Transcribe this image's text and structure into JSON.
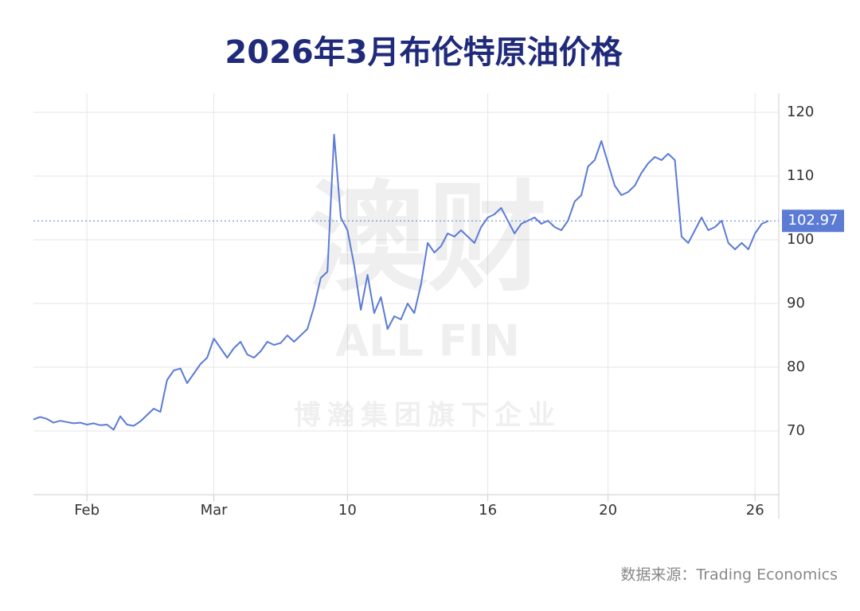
{
  "chart_data": {
    "type": "line",
    "title": "2026年3月布伦特原油价格",
    "source": "数据来源：Trading Economics",
    "watermark": {
      "logo": "澳财",
      "brand": "ALL FIN",
      "tagline": "博瀚集团旗下企业"
    },
    "categories": [
      null,
      null,
      null,
      null,
      null,
      null,
      null,
      null,
      "Feb",
      null,
      null,
      null,
      null,
      null,
      null,
      null,
      null,
      null,
      null,
      null,
      null,
      null,
      null,
      null,
      null,
      null,
      null,
      "Mar",
      null,
      null,
      null,
      null,
      null,
      null,
      null,
      null,
      null,
      null,
      null,
      null,
      null,
      null,
      null,
      null,
      null,
      null,
      null,
      "10",
      null,
      null,
      null,
      null,
      null,
      null,
      null,
      null,
      null,
      null,
      null,
      null,
      null,
      null,
      null,
      null,
      null,
      null,
      null,
      null,
      "16",
      null,
      null,
      null,
      null,
      null,
      null,
      null,
      null,
      null,
      null,
      null,
      null,
      null,
      null,
      null,
      null,
      null,
      "20",
      null,
      null,
      null,
      null,
      null,
      null,
      null,
      null,
      null,
      null,
      null,
      null,
      null,
      null,
      null,
      null,
      null,
      null,
      null,
      null,
      null,
      "26",
      null,
      null
    ],
    "series": [
      {
        "name": "Brent",
        "color": "#5b7bd5",
        "values": [
          71.8,
          72.2,
          71.9,
          71.3,
          71.6,
          71.4,
          71.2,
          71.3,
          71.0,
          71.2,
          70.9,
          71.0,
          70.2,
          72.3,
          71.0,
          70.8,
          71.5,
          72.5,
          73.5,
          73.0,
          78.0,
          79.5,
          79.8,
          77.5,
          79.0,
          80.5,
          81.5,
          84.5,
          83.0,
          81.5,
          83.0,
          84.0,
          82.0,
          81.5,
          82.5,
          84.0,
          83.5,
          83.8,
          85.0,
          84.0,
          85.0,
          86.0,
          89.5,
          94.0,
          95.0,
          116.5,
          103.5,
          101.5,
          96.0,
          89.0,
          94.5,
          88.5,
          91.0,
          86.0,
          88.0,
          87.5,
          90.0,
          88.5,
          93.0,
          99.5,
          98.0,
          99.0,
          101.0,
          100.5,
          101.5,
          100.5,
          99.5,
          102.0,
          103.5,
          104.0,
          105.0,
          103.0,
          101.0,
          102.5,
          103.0,
          103.5,
          102.5,
          103.0,
          102.0,
          101.5,
          103.0,
          106.0,
          107.0,
          111.5,
          112.5,
          115.5,
          112.0,
          108.5,
          107.0,
          107.5,
          108.5,
          110.5,
          112.0,
          113.0,
          112.5,
          113.5,
          112.5,
          100.5,
          99.5,
          101.5,
          103.5,
          101.5,
          102.0,
          103.0,
          99.5,
          98.5,
          99.5,
          98.5,
          101.0,
          102.5,
          102.97
        ]
      }
    ],
    "ylim": [
      60,
      123
    ],
    "yticks": [
      70,
      80,
      90,
      100,
      110,
      120
    ],
    "grid": true,
    "last_value_marker": true
  }
}
